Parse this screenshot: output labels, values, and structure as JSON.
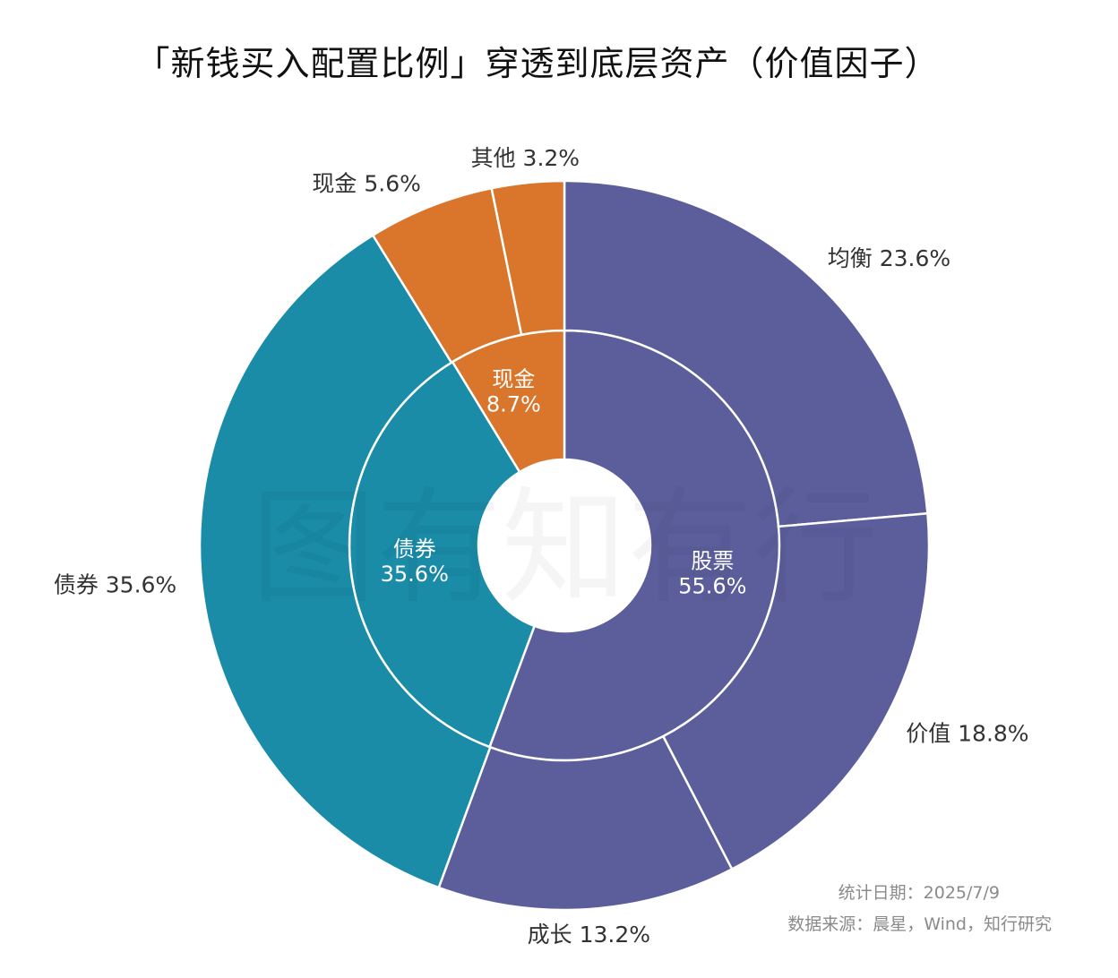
{
  "title": "「新钱买入配置比例」穿透到底层资产（价值因子）",
  "watermark": "图有知有行",
  "footer": {
    "date": "统计日期：2025/7/9",
    "source": "数据来源：晨星，Wind，知行研究"
  },
  "colors": {
    "stock": "#5b5e9b",
    "bond": "#1a8ca8",
    "cash": "#d9762c",
    "border": "#ffffff"
  },
  "chart_data": {
    "type": "pie",
    "subtype": "nested-donut",
    "inner": [
      {
        "name": "股票",
        "value": 55.6,
        "label": "55.6%",
        "color_key": "stock"
      },
      {
        "name": "债券",
        "value": 35.6,
        "label": "35.6%",
        "color_key": "bond"
      },
      {
        "name": "现金",
        "value": 8.7,
        "label": "8.7%",
        "color_key": "cash"
      }
    ],
    "outer": [
      {
        "name": "均衡",
        "value": 23.6,
        "label": "均衡 23.6%",
        "color_key": "stock"
      },
      {
        "name": "价值",
        "value": 18.8,
        "label": "价值 18.8%",
        "color_key": "stock"
      },
      {
        "name": "成长",
        "value": 13.2,
        "label": "成长 13.2%",
        "color_key": "stock"
      },
      {
        "name": "债券",
        "value": 35.6,
        "label": "债券 35.6%",
        "color_key": "bond"
      },
      {
        "name": "现金",
        "value": 5.6,
        "label": "现金 5.6%",
        "color_key": "cash"
      },
      {
        "name": "其他",
        "value": 3.2,
        "label": "其他 3.2%",
        "color_key": "cash"
      }
    ]
  }
}
